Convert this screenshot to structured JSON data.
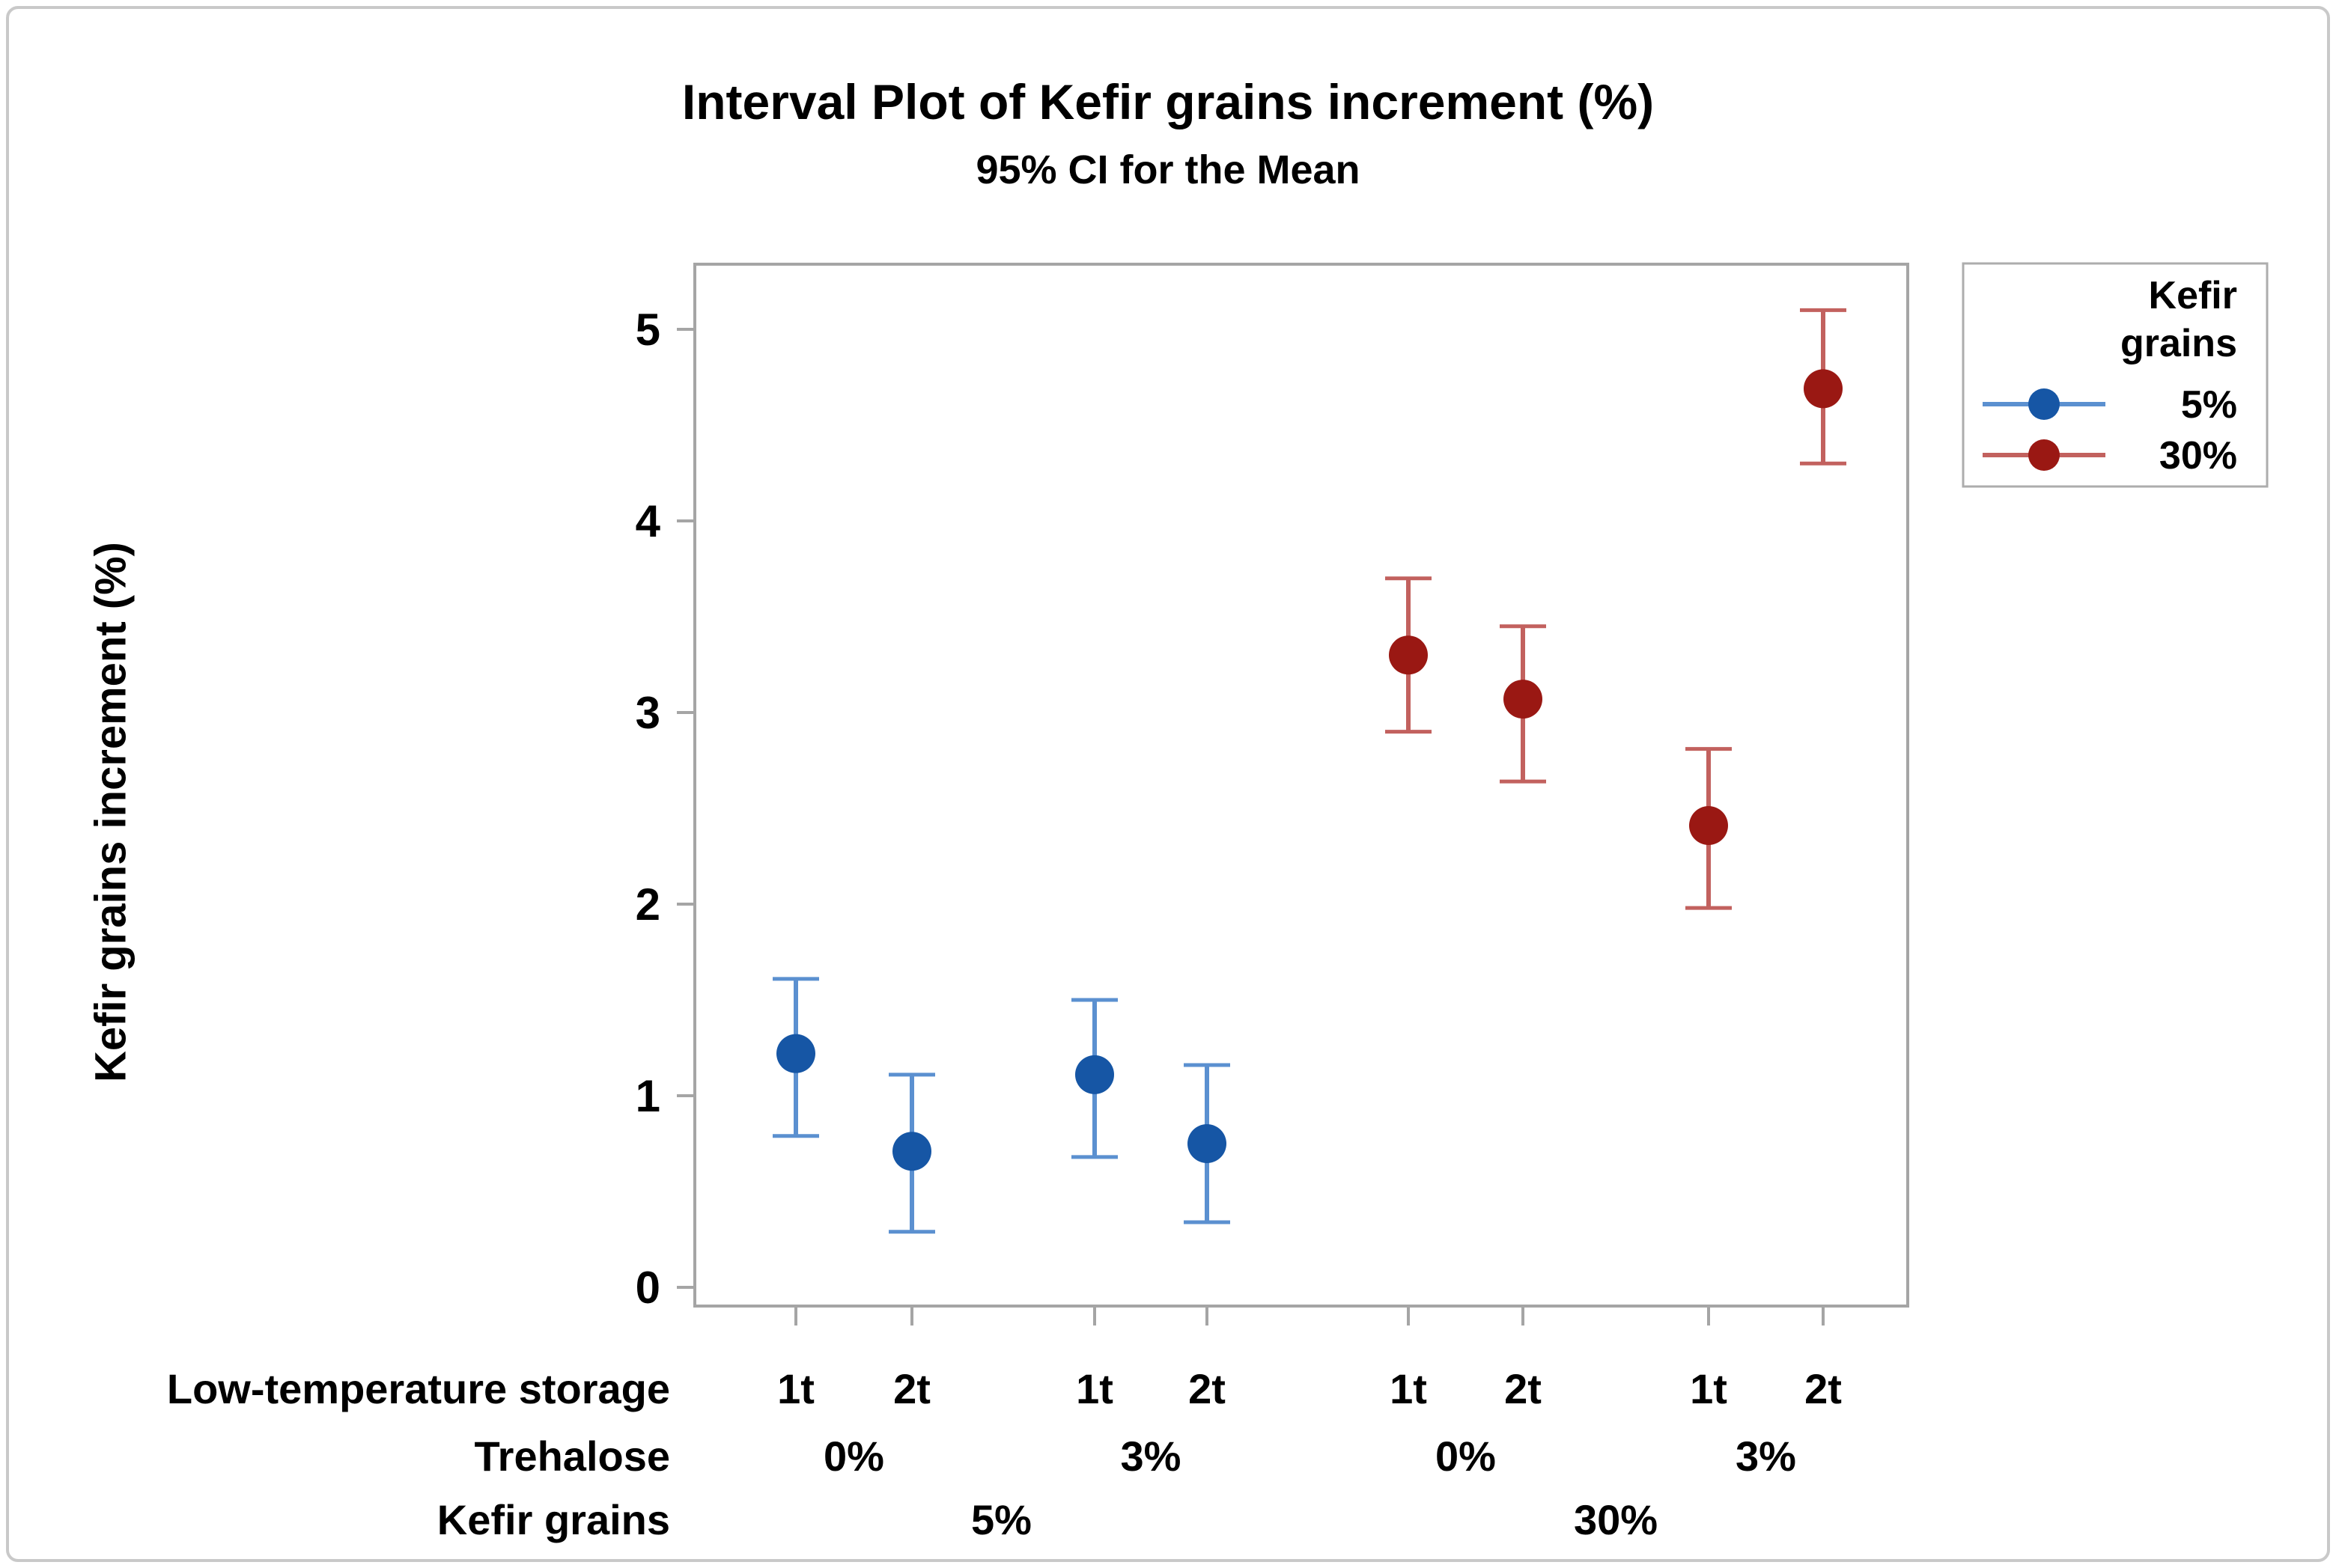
{
  "chart_data": {
    "type": "interval",
    "title": "Interval Plot of Kefir grains increment (%)",
    "subtitle": "95% CI for the Mean",
    "ylabel": "Kefir grains increment (%)",
    "ylim": [
      -0.1,
      5.35
    ],
    "y_ticks": [
      "0",
      "1",
      "2",
      "3",
      "4",
      "5"
    ],
    "grid": false,
    "legend": {
      "position": "top-right",
      "title_lines": [
        "Kefir",
        "grains"
      ],
      "entries": [
        "5%",
        "30%"
      ]
    },
    "x_axis_rows": [
      {
        "label": "Low-temperature storage",
        "values": [
          "1t",
          "2t",
          "1t",
          "2t",
          "1t",
          "2t",
          "1t",
          "2t"
        ]
      },
      {
        "label": "Trehalose",
        "values": [
          "0%",
          "3%",
          "0%",
          "3%"
        ]
      },
      {
        "label": "Kefir grains",
        "values": [
          "5%",
          "30%"
        ]
      }
    ],
    "series": [
      {
        "name": "5%",
        "marker_color": "#1656A5",
        "line_color": "#5B90D0",
        "points": [
          {
            "kefir_grains": "5%",
            "trehalose": "0%",
            "storage": "1t",
            "mean": 1.22,
            "ci_low": 0.79,
            "ci_high": 1.61
          },
          {
            "kefir_grains": "5%",
            "trehalose": "0%",
            "storage": "2t",
            "mean": 0.71,
            "ci_low": 0.29,
            "ci_high": 1.11
          },
          {
            "kefir_grains": "5%",
            "trehalose": "3%",
            "storage": "1t",
            "mean": 1.11,
            "ci_low": 0.68,
            "ci_high": 1.5
          },
          {
            "kefir_grains": "5%",
            "trehalose": "3%",
            "storage": "2t",
            "mean": 0.75,
            "ci_low": 0.34,
            "ci_high": 1.16
          }
        ]
      },
      {
        "name": "30%",
        "marker_color": "#9A1813",
        "line_color": "#C2615E",
        "points": [
          {
            "kefir_grains": "30%",
            "trehalose": "0%",
            "storage": "1t",
            "mean": 3.3,
            "ci_low": 2.9,
            "ci_high": 3.7
          },
          {
            "kefir_grains": "30%",
            "trehalose": "0%",
            "storage": "2t",
            "mean": 3.07,
            "ci_low": 2.64,
            "ci_high": 3.45
          },
          {
            "kefir_grains": "30%",
            "trehalose": "3%",
            "storage": "1t",
            "mean": 2.41,
            "ci_low": 1.98,
            "ci_high": 2.81
          },
          {
            "kefir_grains": "30%",
            "trehalose": "3%",
            "storage": "2t",
            "mean": 4.69,
            "ci_low": 4.3,
            "ci_high": 5.1
          }
        ]
      }
    ],
    "colors": {
      "frame": "#a5a5a5",
      "tick": "#a5a5a5",
      "text": "#000000",
      "legend_border": "#adadad",
      "background": "#ffffff"
    }
  }
}
